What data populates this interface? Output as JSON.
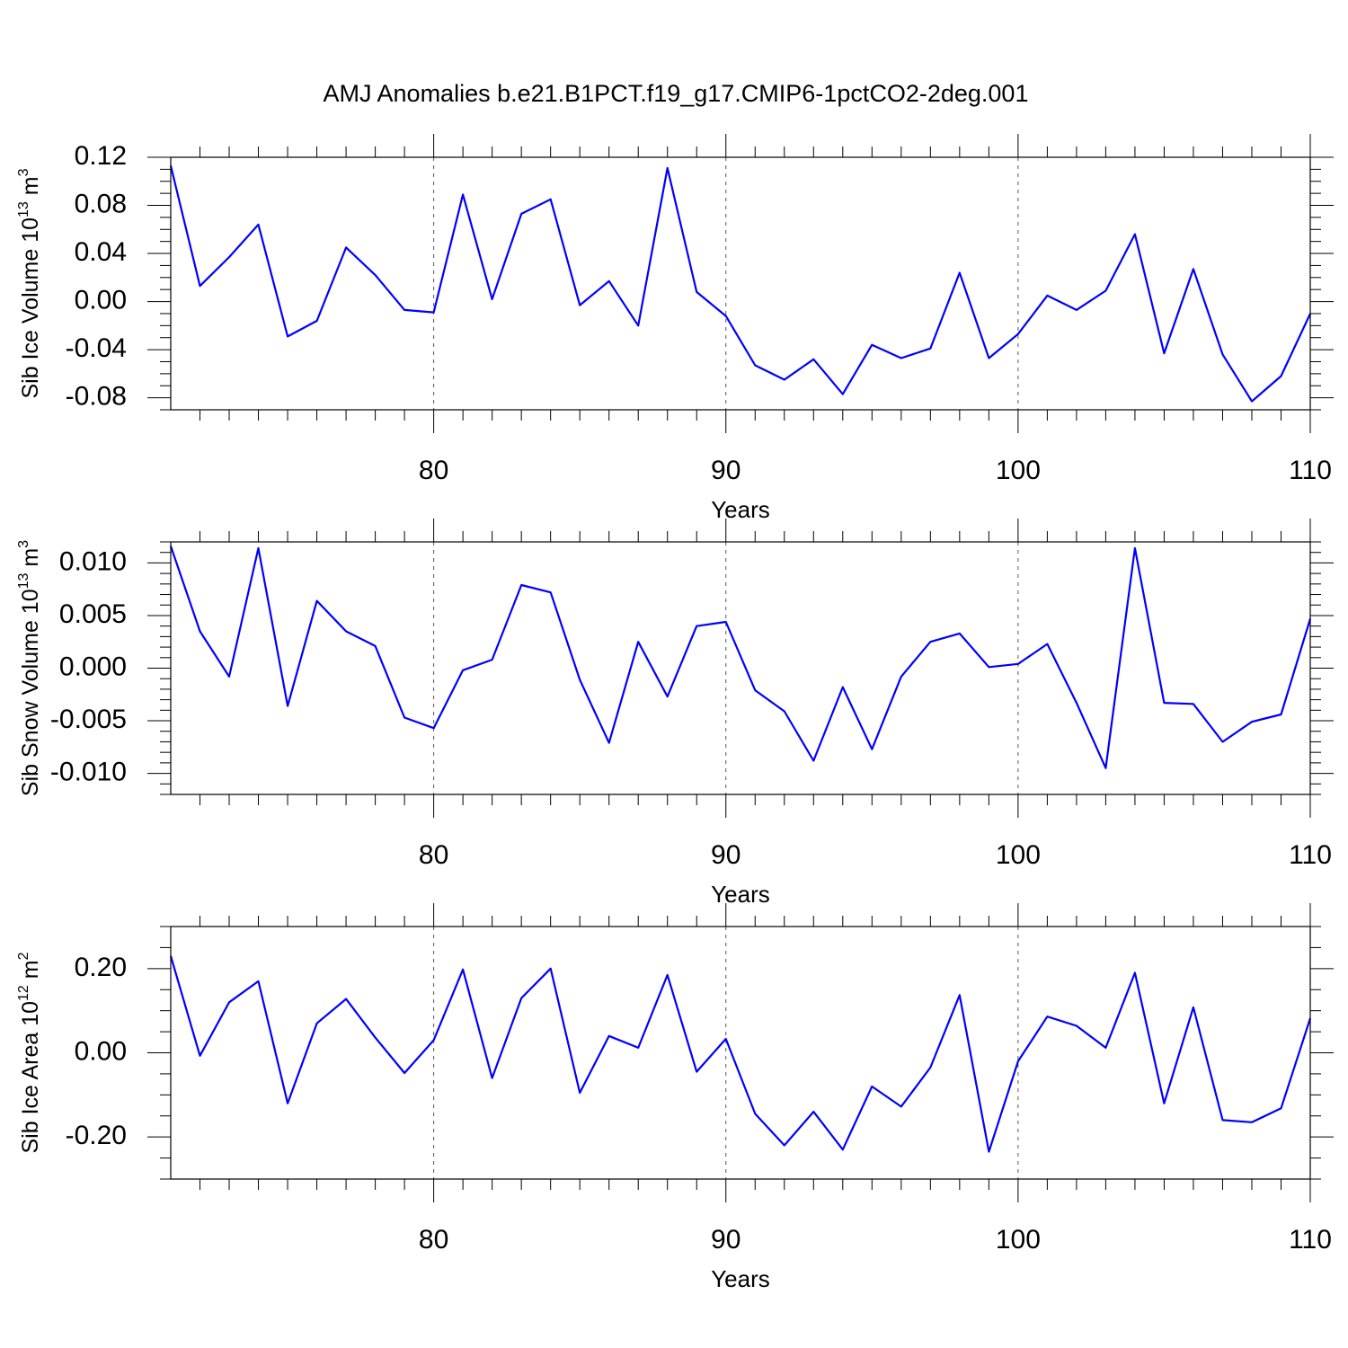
{
  "title": "AMJ Anomalies b.e21.B1PCT.f19_g17.CMIP6-1pctCO2-2deg.001",
  "colors": {
    "line": "#0000ff",
    "axes": "#000000",
    "grid": "#555555"
  },
  "chart_data": [
    {
      "type": "line",
      "ylabel": {
        "base": "Sib Ice Volume 10",
        "exp": "13",
        "unit": "m",
        "unit_exp": "3"
      },
      "xlabel": "Years",
      "xlim": [
        71,
        110
      ],
      "ylim": [
        -0.09,
        0.12
      ],
      "yticks": [
        -0.08,
        -0.04,
        0.0,
        0.04,
        0.08,
        0.12
      ],
      "ytick_labels": [
        "-0.08",
        "-0.04",
        "0.00",
        "0.04",
        "0.08",
        "0.12"
      ],
      "yminor_step": 0.01,
      "xticks": [
        80,
        90,
        100,
        110
      ],
      "xtick_labels": [
        "80",
        "90",
        "100",
        "110"
      ],
      "xminor_step": 1,
      "grid_x": [
        80,
        90,
        100
      ],
      "x": [
        71,
        72,
        73,
        74,
        75,
        76,
        77,
        78,
        79,
        80,
        81,
        82,
        83,
        84,
        85,
        86,
        87,
        88,
        89,
        90,
        91,
        92,
        93,
        94,
        95,
        96,
        97,
        98,
        99,
        100,
        101,
        102,
        103,
        104,
        105,
        106,
        107,
        108,
        109,
        110
      ],
      "values": [
        0.113,
        0.013,
        0.037,
        0.064,
        -0.029,
        -0.016,
        0.045,
        0.022,
        -0.007,
        -0.009,
        0.089,
        0.002,
        0.073,
        0.085,
        -0.003,
        0.017,
        -0.02,
        0.111,
        0.008,
        -0.012,
        -0.053,
        -0.065,
        -0.048,
        -0.077,
        -0.036,
        -0.047,
        -0.039,
        0.024,
        -0.047,
        -0.027,
        0.005,
        -0.007,
        0.009,
        0.056,
        -0.043,
        0.027,
        -0.044,
        -0.083,
        -0.062,
        -0.01
      ]
    },
    {
      "type": "line",
      "ylabel": {
        "base": "Sib Snow Volume 10",
        "exp": "13",
        "unit": "m",
        "unit_exp": "3"
      },
      "xlabel": "Years",
      "xlim": [
        71,
        110
      ],
      "ylim": [
        -0.012,
        0.012
      ],
      "yticks": [
        -0.01,
        -0.005,
        0.0,
        0.005,
        0.01
      ],
      "ytick_labels": [
        "-0.010",
        "-0.005",
        "0.000",
        "0.005",
        "0.010"
      ],
      "yminor_step": 0.001,
      "xticks": [
        80,
        90,
        100,
        110
      ],
      "xtick_labels": [
        "80",
        "90",
        "100",
        "110"
      ],
      "xminor_step": 1,
      "grid_x": [
        80,
        90,
        100
      ],
      "x": [
        71,
        72,
        73,
        74,
        75,
        76,
        77,
        78,
        79,
        80,
        81,
        82,
        83,
        84,
        85,
        86,
        87,
        88,
        89,
        90,
        91,
        92,
        93,
        94,
        95,
        96,
        97,
        98,
        99,
        100,
        101,
        102,
        103,
        104,
        105,
        106,
        107,
        108,
        109,
        110
      ],
      "values": [
        0.0116,
        0.0035,
        -0.0008,
        0.0114,
        -0.0036,
        0.0064,
        0.0035,
        0.0021,
        -0.0047,
        -0.0057,
        -0.0002,
        0.0008,
        0.0079,
        0.0072,
        -0.0011,
        -0.0071,
        0.0025,
        -0.0027,
        0.004,
        0.0044,
        -0.0021,
        -0.0041,
        -0.0088,
        -0.0018,
        -0.0077,
        -0.0008,
        0.0025,
        0.0033,
        0.0001,
        0.0004,
        0.0023,
        -0.0033,
        -0.0095,
        0.0114,
        -0.0033,
        -0.0034,
        -0.007,
        -0.0051,
        -0.0044,
        0.0047
      ]
    },
    {
      "type": "line",
      "ylabel": {
        "base": "Sib Ice Area 10",
        "exp": "12",
        "unit": "m",
        "unit_exp": "2"
      },
      "xlabel": "Years",
      "xlim": [
        71,
        110
      ],
      "ylim": [
        -0.3,
        0.3
      ],
      "yticks": [
        -0.2,
        0.0,
        0.2
      ],
      "ytick_labels": [
        "-0.20",
        "0.00",
        "0.20"
      ],
      "yminor_step": 0.05,
      "xticks": [
        80,
        90,
        100,
        110
      ],
      "xtick_labels": [
        "80",
        "90",
        "100",
        "110"
      ],
      "xminor_step": 1,
      "grid_x": [
        80,
        90,
        100
      ],
      "x": [
        71,
        72,
        73,
        74,
        75,
        76,
        77,
        78,
        79,
        80,
        81,
        82,
        83,
        84,
        85,
        86,
        87,
        88,
        89,
        90,
        91,
        92,
        93,
        94,
        95,
        96,
        97,
        98,
        99,
        100,
        101,
        102,
        103,
        104,
        105,
        106,
        107,
        108,
        109,
        110
      ],
      "values": [
        0.23,
        -0.007,
        0.12,
        0.17,
        -0.12,
        0.07,
        0.128,
        0.036,
        -0.048,
        0.03,
        0.198,
        -0.06,
        0.13,
        0.2,
        -0.095,
        0.04,
        0.012,
        0.185,
        -0.045,
        0.033,
        -0.145,
        -0.22,
        -0.14,
        -0.23,
        -0.08,
        -0.128,
        -0.035,
        0.137,
        -0.235,
        -0.02,
        0.086,
        0.064,
        0.012,
        0.19,
        -0.12,
        0.108,
        -0.16,
        -0.165,
        -0.132,
        0.082
      ]
    }
  ]
}
